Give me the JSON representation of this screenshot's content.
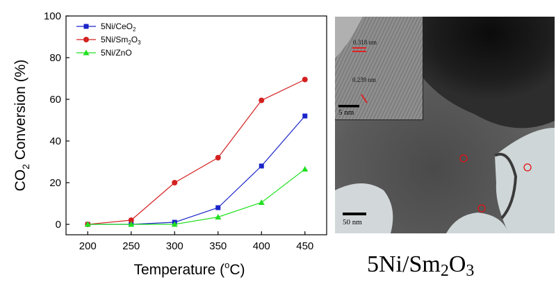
{
  "chart_data": {
    "type": "line",
    "title": "",
    "xlabel": "Temperature (°C)",
    "ylabel": "CO2 Conversion (%)",
    "x": [
      200,
      250,
      300,
      350,
      400,
      450
    ],
    "xlim": [
      175,
      475
    ],
    "ylim": [
      -5,
      100
    ],
    "xticks": [
      200,
      250,
      300,
      350,
      400,
      450
    ],
    "yticks": [
      0,
      20,
      40,
      60,
      80,
      100
    ],
    "grid": false,
    "legend_position": "top-left",
    "series": [
      {
        "name": "5Ni/CeO2",
        "label_main": "5Ni/CeO",
        "label_sub": "2",
        "label_tail": "",
        "color": "#1a24c8",
        "marker": "square",
        "values": [
          0,
          0,
          1,
          8,
          28,
          52
        ]
      },
      {
        "name": "5Ni/Sm2O3",
        "label_main": "5Ni/Sm",
        "label_sub": "2",
        "label_tail": "O",
        "label_sub2": "3",
        "color": "#d42020",
        "marker": "circle",
        "values": [
          0,
          2,
          20,
          32,
          59.5,
          69.5
        ]
      },
      {
        "name": "5Ni/ZnO",
        "label_main": "5Ni/ZnO",
        "label_sub": "",
        "label_tail": "",
        "color": "#22e022",
        "marker": "triangle",
        "values": [
          0,
          0,
          0,
          3.5,
          10.5,
          26.5
        ]
      }
    ],
    "ylabel_parts": {
      "pre": "CO",
      "sub": "2",
      "post": " Conversion (%)"
    },
    "xlabel_parts": {
      "pre": "Temperature (",
      "sup": "o",
      "post": "C)"
    }
  },
  "image_panel": {
    "inset_scale": "5 nm",
    "main_scale": "50 nm",
    "lattice_1": "0.318 nm",
    "lattice_2": "0.239 nm",
    "caption_main": "5Ni/Sm",
    "caption_sub1": "2",
    "caption_mid": "O",
    "caption_sub2": "3"
  },
  "colors": {
    "marker_ring": "#e01010",
    "axis": "#000000"
  }
}
